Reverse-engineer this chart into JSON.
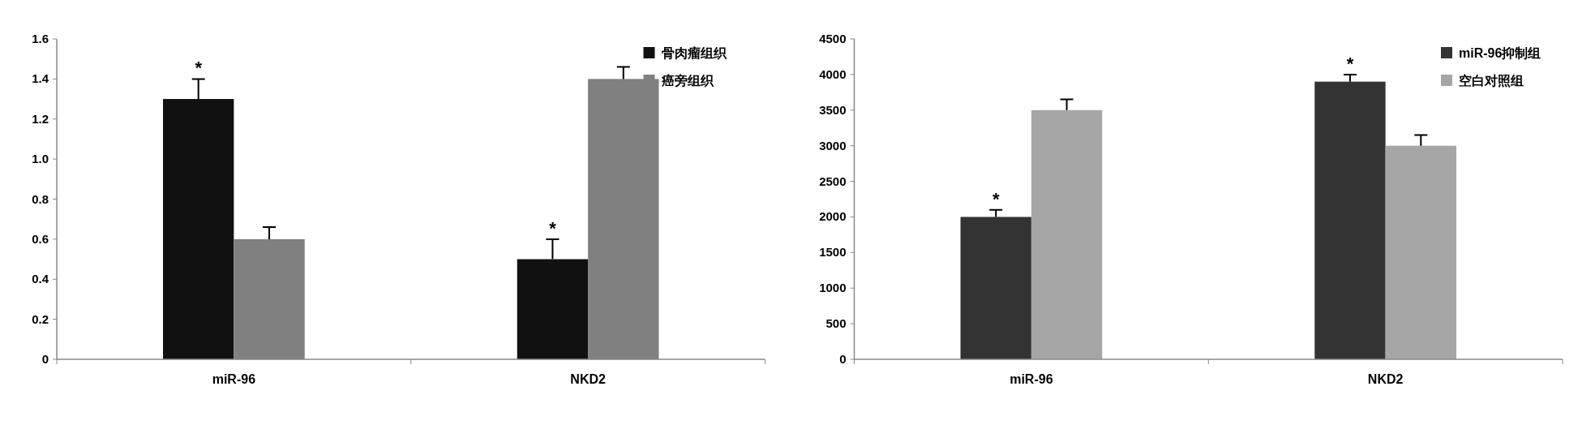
{
  "chart_data": [
    {
      "type": "bar",
      "categories": [
        "miR-96",
        "NKD2"
      ],
      "ylim": [
        0,
        1.6
      ],
      "yticks": [
        0,
        0.2,
        0.4,
        0.6,
        0.8,
        {
          "value": 1,
          "label": "1.0"
        },
        1.2,
        1.4,
        1.6
      ],
      "legend": "top right",
      "grid": false,
      "series": [
        {
          "name": "骨肉瘤组织",
          "color": "#111111",
          "values": [
            1.3,
            0.5
          ],
          "errors": [
            0.1,
            0.1
          ]
        },
        {
          "name": "癌旁组织",
          "color": "#808080",
          "values": [
            0.6,
            1.4
          ],
          "errors": [
            0.06,
            0.06
          ]
        }
      ],
      "annotations": [
        {
          "text": "*",
          "x": "miR-96",
          "y": 1.3
        },
        {
          "text": "*",
          "x": "NKD2",
          "y": 0.5
        }
      ]
    },
    {
      "type": "bar",
      "categories": [
        "miR-96",
        "NKD2"
      ],
      "ylim": [
        0,
        4500
      ],
      "yticks": [
        0,
        500,
        1000,
        1500,
        2000,
        2500,
        3000,
        3500,
        4000,
        4500
      ],
      "legend": "top right",
      "grid": false,
      "series": [
        {
          "name": "miR-96抑制组",
          "color": "#333333",
          "values": [
            2000,
            3900
          ],
          "errors": [
            100,
            100
          ]
        },
        {
          "name": "空白对照组",
          "color": "#a6a6a6",
          "values": [
            3500,
            3000
          ],
          "errors": [
            150,
            150
          ]
        }
      ],
      "annotations": [
        {
          "text": "*",
          "x": "miR-96",
          "y": 2000
        },
        {
          "text": "*",
          "x": "NKD2",
          "y": 3900
        }
      ]
    }
  ]
}
